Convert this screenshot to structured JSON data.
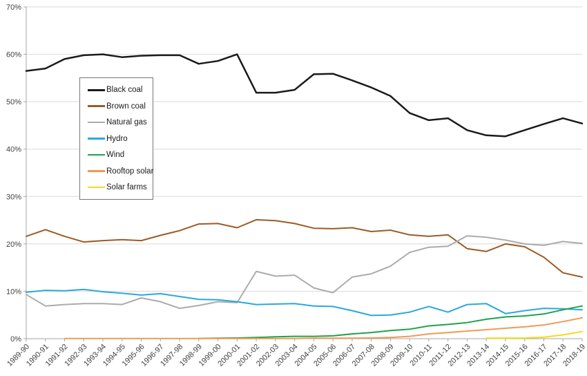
{
  "chart_data": {
    "type": "line",
    "title": "",
    "xlabel": "",
    "ylabel": "",
    "ylim": [
      0,
      70
    ],
    "ytick_step": 10,
    "ytick_suffix": "%",
    "grid": true,
    "legend_position": "inside-top-left",
    "categories": [
      "1989-90",
      "1990-91",
      "1991-92",
      "1992-93",
      "1993-94",
      "1994-95",
      "1995-96",
      "1996-97",
      "1997-98",
      "1998-99",
      "1999-00",
      "2000-01",
      "2001-02",
      "2002-03",
      "2003-04",
      "2004-05",
      "2005-06",
      "2006-07",
      "2007-08",
      "2008-09",
      "2009-10",
      "2010-11",
      "2011-12",
      "2012-13",
      "2013-14",
      "2014-15",
      "2015-16",
      "2016-17",
      "2017-18",
      "2018-19"
    ],
    "series": [
      {
        "name": "Black coal",
        "color": "#1a1a1a",
        "values": [
          56.5,
          57.0,
          59.0,
          59.8,
          60.0,
          59.4,
          59.7,
          59.8,
          59.8,
          58.0,
          58.6,
          60.0,
          51.9,
          51.9,
          52.5,
          55.8,
          55.9,
          54.5,
          53.0,
          51.2,
          47.6,
          46.1,
          46.5,
          44.0,
          42.9,
          42.7,
          44.0,
          45.3,
          46.5,
          45.4
        ]
      },
      {
        "name": "Brown coal",
        "color": "#9c5a24",
        "values": [
          21.6,
          23.0,
          21.6,
          20.4,
          20.7,
          20.9,
          20.7,
          21.8,
          22.8,
          24.2,
          24.3,
          23.4,
          25.1,
          24.9,
          24.3,
          23.3,
          23.2,
          23.4,
          22.6,
          22.9,
          21.9,
          21.6,
          21.9,
          19.0,
          18.4,
          20.0,
          19.4,
          17.2,
          13.9,
          13.0
        ]
      },
      {
        "name": "Natural gas",
        "color": "#ababab",
        "values": [
          9.3,
          6.9,
          7.2,
          7.4,
          7.4,
          7.2,
          8.6,
          7.8,
          6.4,
          7.0,
          7.8,
          7.6,
          14.2,
          13.2,
          13.4,
          10.7,
          9.7,
          13.0,
          13.7,
          15.3,
          18.2,
          19.3,
          19.5,
          21.7,
          21.4,
          20.8,
          20.0,
          19.7,
          20.5,
          20.1
        ]
      },
      {
        "name": "Hydro",
        "color": "#2aa7de",
        "values": [
          9.8,
          10.2,
          10.1,
          10.4,
          9.9,
          9.6,
          9.2,
          9.5,
          8.9,
          8.3,
          8.2,
          7.8,
          7.2,
          7.3,
          7.4,
          6.9,
          6.8,
          5.9,
          4.9,
          5.0,
          5.6,
          6.8,
          5.6,
          7.2,
          7.4,
          5.3,
          5.9,
          6.4,
          6.3,
          6.1
        ]
      },
      {
        "name": "Wind",
        "color": "#1ea24a",
        "values": [
          null,
          null,
          null,
          null,
          null,
          null,
          null,
          null,
          null,
          0.05,
          0.1,
          0.15,
          0.25,
          0.4,
          0.5,
          0.5,
          0.6,
          1.0,
          1.3,
          1.7,
          2.0,
          2.7,
          3.0,
          3.4,
          4.1,
          4.6,
          4.8,
          5.2,
          6.1,
          6.9
        ]
      },
      {
        "name": "Rooftop solar",
        "color": "#ee9a54",
        "values": [
          null,
          null,
          0.05,
          0.05,
          0.05,
          0.05,
          0.05,
          0.05,
          0.05,
          0.05,
          0.05,
          0.05,
          0.05,
          0.05,
          0.05,
          0.1,
          0.1,
          0.1,
          0.15,
          0.25,
          0.5,
          1.0,
          1.3,
          1.6,
          1.9,
          2.2,
          2.5,
          2.9,
          3.6,
          4.4
        ]
      },
      {
        "name": "Solar farms",
        "color": "#f7d917",
        "values": [
          null,
          null,
          null,
          null,
          null,
          null,
          null,
          null,
          null,
          null,
          null,
          null,
          null,
          null,
          null,
          null,
          null,
          null,
          null,
          null,
          null,
          null,
          null,
          null,
          0.1,
          0.1,
          0.15,
          0.3,
          0.8,
          1.5
        ]
      }
    ]
  },
  "style": {
    "background": "#ffffff",
    "grid_color": "#d9d9d9",
    "axis_color": "#a6a6a6",
    "label_color": "#404040",
    "legend_border": "#767676"
  }
}
